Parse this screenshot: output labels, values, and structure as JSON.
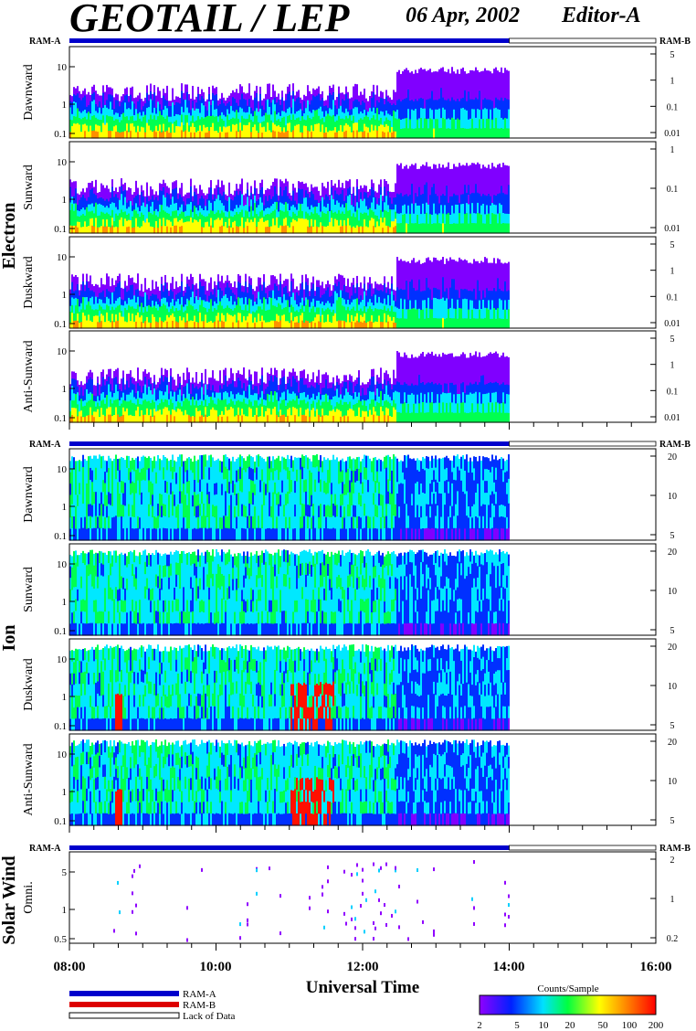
{
  "header": {
    "title": "GEOTAIL / LEP",
    "date": "06 Apr, 2002",
    "editor": "Editor-A"
  },
  "chart_data": {
    "type": "heatmap",
    "xlabel": "Universal Time",
    "x_ticks": [
      "08:00",
      "10:00",
      "12:00",
      "14:00",
      "16:00"
    ],
    "xlim": [
      "08:00",
      "16:00"
    ],
    "data_end": "14:00",
    "ram_a_label": "RAM-A",
    "ram_b_label": "RAM-B",
    "groups": [
      {
        "name": "Electron",
        "panels": [
          {
            "label": "Dawnward",
            "left_ticks": [
              "10",
              "1",
              "0.1"
            ],
            "right_ticks": [
              "5",
              "1",
              "0.1",
              "0.01"
            ]
          },
          {
            "label": "Sunward",
            "left_ticks": [
              "10",
              "1",
              "0.1"
            ],
            "right_ticks": [
              "1",
              "0.1",
              "0.01"
            ]
          },
          {
            "label": "Duskward",
            "left_ticks": [
              "10",
              "1",
              "0.1"
            ],
            "right_ticks": [
              "5",
              "1",
              "0.1",
              "0.01"
            ]
          },
          {
            "label": "Anti-Sunward",
            "left_ticks": [
              "10",
              "1",
              "0.1"
            ],
            "right_ticks": [
              "5",
              "1",
              "0.1",
              "0.01"
            ]
          }
        ]
      },
      {
        "name": "Ion",
        "panels": [
          {
            "label": "Dawnward",
            "left_ticks": [
              "10",
              "1",
              "0.1"
            ],
            "right_ticks": [
              "20",
              "10",
              "5"
            ]
          },
          {
            "label": "Sunward",
            "left_ticks": [
              "10",
              "1",
              "0.1"
            ],
            "right_ticks": [
              "20",
              "10",
              "5"
            ]
          },
          {
            "label": "Duskward",
            "left_ticks": [
              "10",
              "1",
              "0.1"
            ],
            "right_ticks": [
              "20",
              "10",
              "5"
            ]
          },
          {
            "label": "Anti-Sunward",
            "left_ticks": [
              "10",
              "1",
              "0.1"
            ],
            "right_ticks": [
              "20",
              "10",
              "5"
            ]
          }
        ]
      },
      {
        "name": "Solar Wind",
        "panels": [
          {
            "label": "Omni.",
            "left_ticks": [
              "5",
              "1",
              "0.5"
            ],
            "right_ticks": [
              "2",
              "1",
              "0.2"
            ]
          }
        ]
      }
    ],
    "legend": {
      "items": [
        {
          "label": "RAM-A",
          "color": "#0000cc"
        },
        {
          "label": "RAM-B",
          "color": "#dd0000"
        },
        {
          "label": "Lack of Data",
          "color": "#ffffff"
        }
      ]
    },
    "colorbar": {
      "title": "Counts/Sample",
      "ticks": [
        "2",
        "5",
        "10",
        "20",
        "50",
        "100",
        "200"
      ],
      "colors": [
        "#8800ff",
        "#0000ff",
        "#00ffff",
        "#00ff00",
        "#ffff00",
        "#ff8800",
        "#ff0000"
      ]
    }
  }
}
